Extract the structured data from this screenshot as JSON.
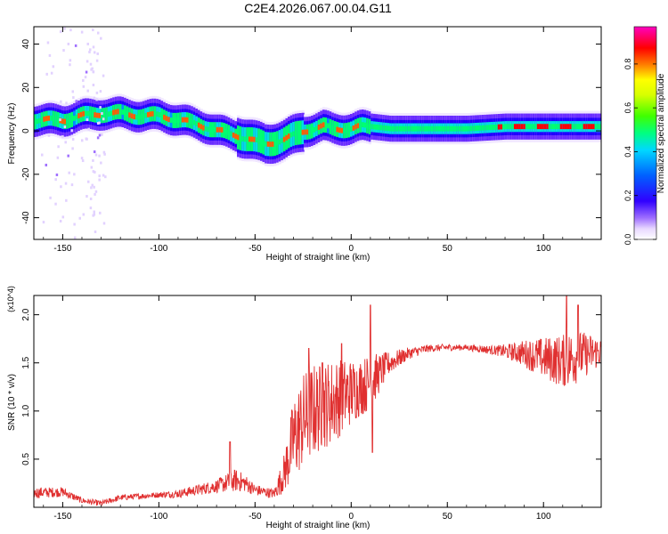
{
  "title": "C2E4.2026.067.00.04.G11",
  "chart_data": [
    {
      "type": "heatmap",
      "xlabel": "Height of straight line (km)",
      "ylabel": "Frequency (Hz)",
      "xlim": [
        -165,
        130
      ],
      "ylim": [
        -50,
        48
      ],
      "xticks": [
        -150,
        -100,
        -50,
        0,
        50,
        100
      ],
      "yticks": [
        -40,
        -20,
        0,
        20,
        40
      ],
      "xtick_labels": [
        "-150",
        "-100",
        "-50",
        "0",
        "50",
        "100"
      ],
      "ytick_labels": [
        "-40",
        "-20",
        "0",
        "20",
        "40"
      ],
      "colorbar": {
        "label": "Normalized spectral amplitude",
        "range": [
          0,
          0.97
        ],
        "ticks": [
          0.0,
          0.2,
          0.4,
          0.6,
          0.8
        ],
        "tick_labels": [
          "0.0",
          "0.2",
          "0.4",
          "0.6",
          "0.8"
        ]
      },
      "ridge": {
        "x": [
          -165,
          -150,
          -140,
          -130,
          -120,
          -110,
          -100,
          -90,
          -80,
          -70,
          -60,
          -50,
          -45,
          -40,
          -35,
          -30,
          -25,
          -20,
          -15,
          -10,
          -5,
          0,
          5,
          10,
          20,
          40,
          60,
          80,
          100,
          130
        ],
        "frequency": [
          5,
          5,
          7,
          8,
          8,
          7,
          7,
          5,
          3,
          0,
          -2,
          -5,
          -6,
          -5,
          -4,
          -2,
          0,
          1,
          2,
          1,
          1,
          1,
          2,
          2,
          1,
          1,
          1,
          2,
          2,
          2
        ]
      }
    },
    {
      "type": "line",
      "xlabel": "Height of straight line (km)",
      "ylabel": "SNR (10 * v/v)",
      "yscale_label": "(x10^4)",
      "xlim": [
        -165,
        130
      ],
      "ylim": [
        0,
        2.2
      ],
      "xticks": [
        -150,
        -100,
        -50,
        0,
        50,
        100
      ],
      "yticks": [
        0.5,
        1.0,
        1.5,
        2.0
      ],
      "xtick_labels": [
        "-150",
        "-100",
        "-50",
        "0",
        "50",
        "100"
      ],
      "ytick_labels": [
        "0.5",
        "1.0",
        "1.5",
        "2.0"
      ],
      "color": "#e03030",
      "trend": {
        "x": [
          -165,
          -150,
          -140,
          -130,
          -120,
          -100,
          -90,
          -80,
          -70,
          -60,
          -55,
          -50,
          -45,
          -40,
          -35,
          -30,
          -25,
          -20,
          -15,
          -10,
          -5,
          0,
          5,
          10,
          15,
          20,
          30,
          40,
          50,
          60,
          70,
          80,
          90,
          100,
          110,
          120,
          130
        ],
        "y": [
          0.15,
          0.16,
          0.07,
          0.04,
          0.1,
          0.13,
          0.14,
          0.18,
          0.22,
          0.28,
          0.25,
          0.18,
          0.16,
          0.14,
          0.35,
          0.7,
          0.9,
          1.0,
          1.05,
          1.1,
          1.15,
          1.2,
          1.25,
          1.3,
          1.4,
          1.5,
          1.6,
          1.65,
          1.66,
          1.66,
          1.64,
          1.62,
          1.6,
          1.55,
          1.52,
          1.58,
          1.62
        ]
      },
      "noise": {
        "x": [
          -165,
          -150,
          -140,
          -100,
          -70,
          -60,
          -50,
          -40,
          -35,
          -30,
          -25,
          -20,
          -15,
          -10,
          -5,
          0,
          5,
          10,
          15,
          20,
          30,
          40,
          60,
          75,
          85,
          95,
          105,
          115,
          125,
          130
        ],
        "amplitude": [
          0.06,
          0.05,
          0.03,
          0.03,
          0.07,
          0.12,
          0.06,
          0.05,
          0.2,
          0.45,
          0.5,
          0.5,
          0.45,
          0.45,
          0.4,
          0.35,
          0.3,
          0.3,
          0.2,
          0.12,
          0.06,
          0.04,
          0.03,
          0.05,
          0.1,
          0.18,
          0.25,
          0.3,
          0.2,
          0.15
        ]
      },
      "spikes": [
        {
          "x": -63,
          "y": 0.68
        },
        {
          "x": -22,
          "y": 1.65
        },
        {
          "x": -15,
          "y": 1.5
        },
        {
          "x": -5,
          "y": 1.7
        },
        {
          "x": 10,
          "y": 2.1
        },
        {
          "x": 11,
          "y": 0.57
        },
        {
          "x": 112,
          "y": 2.2
        },
        {
          "x": 118,
          "y": 2.1
        }
      ]
    }
  ]
}
